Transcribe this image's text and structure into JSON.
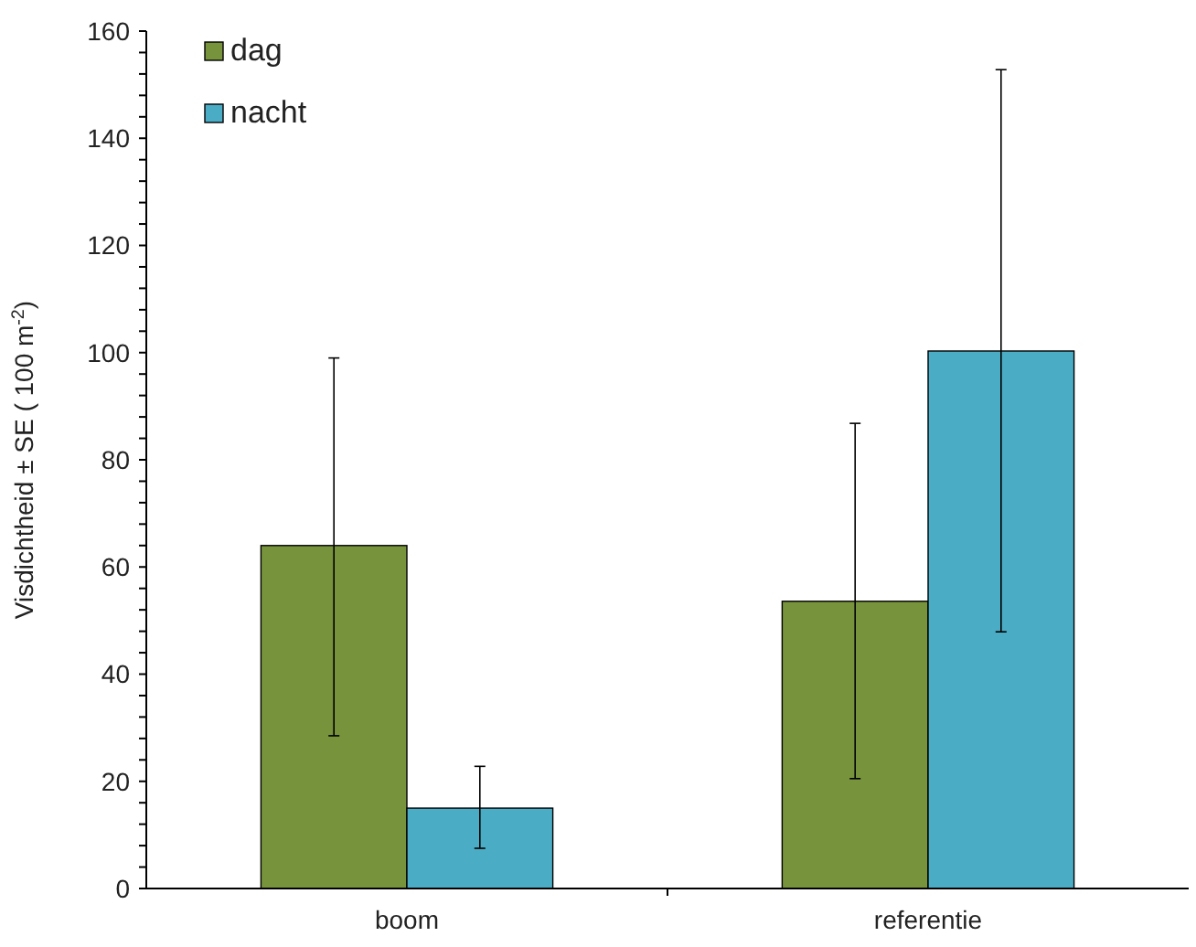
{
  "chart_data": {
    "type": "bar",
    "ylabel": "Visdichtheid ± SE ( 100 m$^{-2}$)",
    "categories": [
      "boom",
      "referentie"
    ],
    "series": [
      {
        "name": "dag",
        "color": "#77933c",
        "values": [
          64,
          53.6
        ],
        "errors": [
          [
            28.5,
            99
          ],
          [
            20.5,
            86.8
          ]
        ]
      },
      {
        "name": "nacht",
        "color": "#4bacc6",
        "values": [
          15,
          100.3
        ],
        "errors": [
          [
            7.5,
            22.8
          ],
          [
            47.9,
            152.8
          ]
        ]
      }
    ],
    "ylim": [
      0,
      160
    ],
    "yticks": [
      0,
      {
        "value": 4,
        "label": null
      },
      {
        "value": 8,
        "label": null
      },
      {
        "value": 12,
        "label": null
      },
      {
        "value": 16,
        "label": null
      },
      20,
      {
        "value": 24,
        "label": null
      },
      {
        "value": 28,
        "label": null
      },
      {
        "value": 32,
        "label": null
      },
      {
        "value": 36,
        "label": null
      },
      40,
      {
        "value": 44,
        "label": null
      },
      {
        "value": 48,
        "label": null
      },
      {
        "value": 52,
        "label": null
      },
      {
        "value": 56,
        "label": null
      },
      60,
      {
        "value": 64,
        "label": null
      },
      {
        "value": 68,
        "label": null
      },
      {
        "value": 72,
        "label": null
      },
      {
        "value": 76,
        "label": null
      },
      80,
      {
        "value": 84,
        "label": null
      },
      {
        "value": 88,
        "label": null
      },
      {
        "value": 92,
        "label": null
      },
      {
        "value": 96,
        "label": null
      },
      100,
      {
        "value": 104,
        "label": null
      },
      {
        "value": 108,
        "label": null
      },
      {
        "value": 112,
        "label": null
      },
      {
        "value": 116,
        "label": null
      },
      120,
      {
        "value": 124,
        "label": null
      },
      {
        "value": 128,
        "label": null
      },
      {
        "value": 132,
        "label": null
      },
      {
        "value": 136,
        "label": null
      },
      140,
      {
        "value": 144,
        "label": null
      },
      {
        "value": 148,
        "label": null
      },
      {
        "value": 152,
        "label": null
      },
      {
        "value": 156,
        "label": null
      },
      160
    ],
    "grid": false,
    "legend": "top left"
  }
}
